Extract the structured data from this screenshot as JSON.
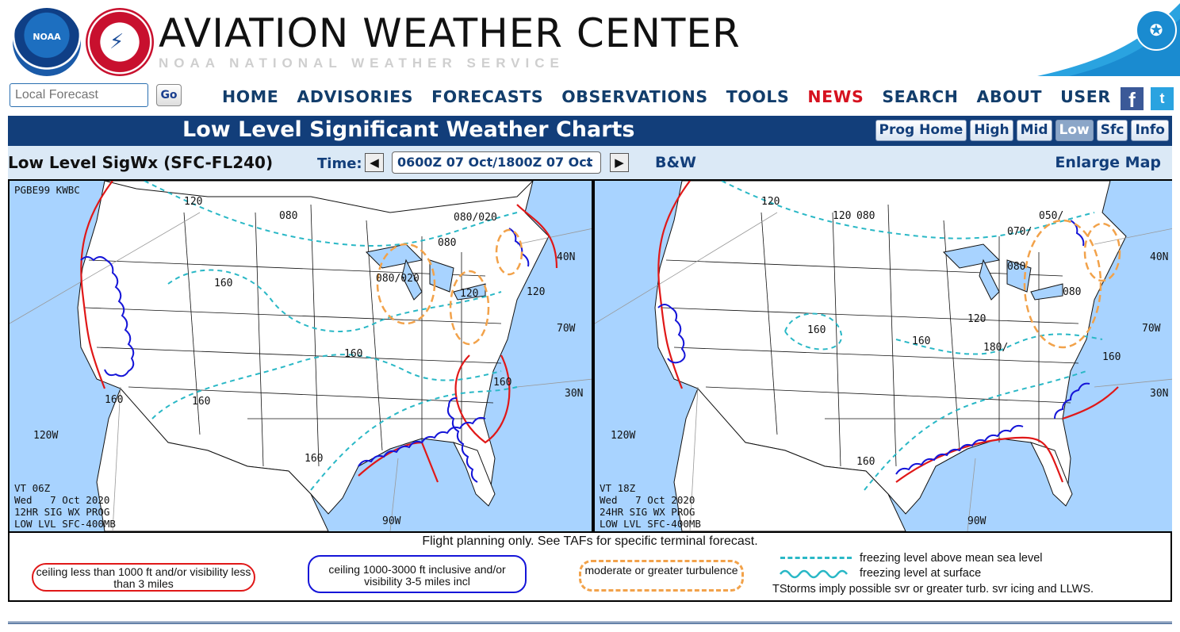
{
  "header": {
    "site_title": "AVIATION WEATHER CENTER",
    "site_subtitle": "NOAA    NATIONAL WEATHER SERVICE",
    "noaa_logo_text": "NOAA"
  },
  "nav": {
    "local_forecast_placeholder": "Local Forecast",
    "go_label": "Go",
    "menu": [
      "HOME",
      "ADVISORIES",
      "FORECASTS",
      "OBSERVATIONS",
      "TOOLS",
      "NEWS",
      "SEARCH",
      "ABOUT",
      "USER"
    ],
    "facebook_glyph": "f",
    "twitter_glyph": "t"
  },
  "title_bar": {
    "title": "Low Level Significant Weather Charts",
    "tabs": [
      "Prog Home",
      "High",
      "Mid",
      "Low",
      "Sfc",
      "Info"
    ],
    "active_tab": "Low"
  },
  "controls": {
    "product_name": "Low Level SigWx (SFC-FL240)",
    "time_label": "Time:",
    "time_value": "0600Z 07 Oct/1800Z 07 Oct",
    "bw_label": "B&W",
    "enlarge_label": "Enlarge Map"
  },
  "chart": {
    "header_code": "PGBE99 KWBC",
    "left_panel": {
      "valid_lines": [
        "VT 06Z",
        "Wed   7 Oct 2020",
        "12HR SIG WX PROG",
        "LOW LVL SFC-400MB"
      ],
      "freezing_labels": [
        "120",
        "080",
        "080/020",
        "080",
        "160",
        "080/020",
        "120",
        "120",
        "160",
        "160",
        "160",
        "160",
        "160"
      ],
      "grid_labels": [
        "120W",
        "90W",
        "70W",
        "40N",
        "30N"
      ]
    },
    "right_panel": {
      "valid_lines": [
        "VT 18Z",
        "Wed   7 Oct 2020",
        "24HR SIG WX PROG",
        "LOW LVL SFC-400MB"
      ],
      "freezing_labels": [
        "120",
        "120",
        "080",
        "050/",
        "070/",
        "080",
        "160",
        "160",
        "120",
        "180/",
        "080",
        "160",
        "160"
      ],
      "grid_labels": [
        "120W",
        "90W",
        "70W",
        "40N",
        "30N"
      ]
    },
    "legend": {
      "note": "Flight planning only. See TAFs for specific terminal forecast.",
      "ifr": "ceiling less than 1000 ft and/or visibility less than 3 miles",
      "mvfr": "ceiling 1000-3000 ft inclusive and/or visibility 3-5 miles incl",
      "turbulence": "moderate or greater turbulence",
      "freezing_msl": "freezing level above mean sea level",
      "freezing_sfc": "freezing level at surface",
      "tstorms": "TStorms imply possible svr or greater turb. svr icing and LLWS."
    },
    "colors": {
      "ifr": "#e01818",
      "mvfr": "#1515d8",
      "turbulence": "#f2a24a",
      "freezing": "#2ab8c6",
      "water": "#a8d3ff"
    }
  }
}
